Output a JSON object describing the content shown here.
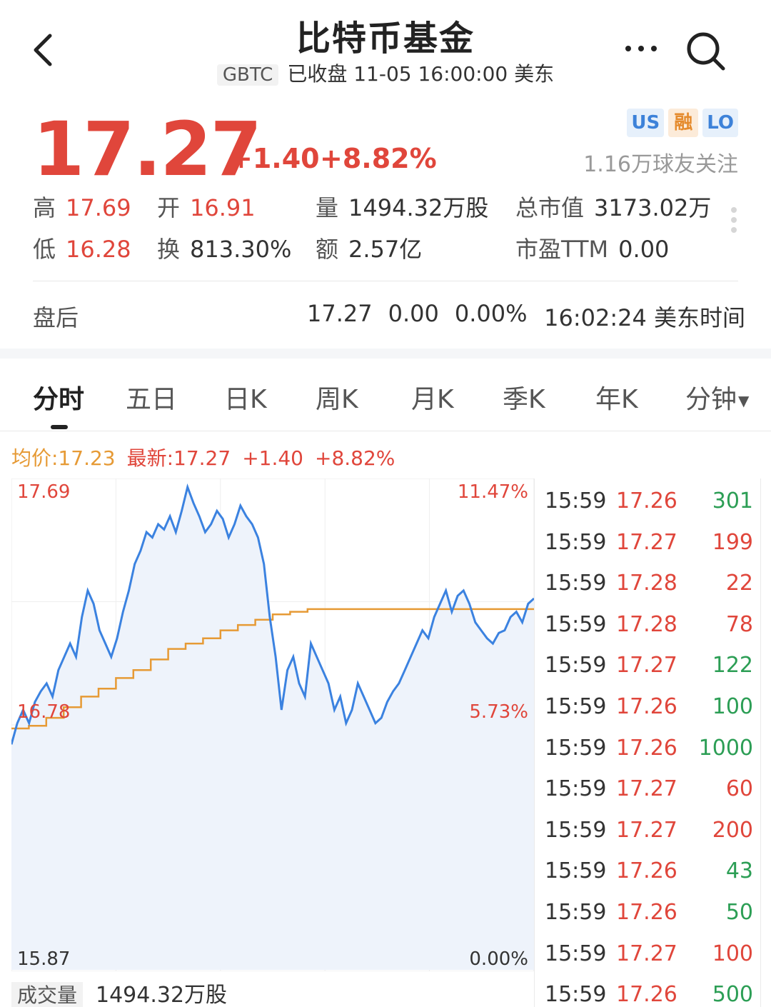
{
  "header": {
    "title": "比特币基金",
    "ticker": "GBTC",
    "status": "已收盘 11-05 16:00:00 美东"
  },
  "quote": {
    "price": "17.27",
    "change": "+1.40",
    "change_pct": "+8.82%",
    "badges": [
      "US",
      "融",
      "LO"
    ],
    "followers": "1.16万球友关注",
    "stats": {
      "high_label": "高",
      "high": "17.69",
      "open_label": "开",
      "open": "16.91",
      "volume_label": "量",
      "volume": "1494.32万股",
      "mktcap_label": "总市值",
      "mktcap": "3173.02万",
      "low_label": "低",
      "low": "16.28",
      "turnover_label": "换",
      "turnover": "813.30%",
      "amount_label": "额",
      "amount": "2.57亿",
      "pe_label": "市盈TTM",
      "pe": "0.00"
    },
    "after_hours": {
      "label": "盘后",
      "price": "17.27",
      "change": "0.00",
      "pct": "0.00%",
      "time": "16:02:24 美东时间"
    }
  },
  "tabs": [
    "分时",
    "五日",
    "日K",
    "周K",
    "月K",
    "季K",
    "年K",
    "分钟"
  ],
  "active_tab": "分时",
  "legend": {
    "avg": "均价:17.23",
    "latest": "最新:17.27",
    "change": "+1.40",
    "pct": "+8.82%"
  },
  "chart_labels": {
    "y_top": "17.69",
    "y_mid": "16.78",
    "y_bottom": "15.87",
    "pct_top": "11.47%",
    "pct_mid": "5.73%",
    "pct_bottom": "0.00%"
  },
  "volume": {
    "label": "成交量",
    "value": "1494.32万股"
  },
  "trades": [
    {
      "time": "15:59",
      "price": "17.26",
      "vol": "301",
      "side": "buy"
    },
    {
      "time": "15:59",
      "price": "17.27",
      "vol": "199",
      "side": "sell"
    },
    {
      "time": "15:59",
      "price": "17.28",
      "vol": "22",
      "side": "sell"
    },
    {
      "time": "15:59",
      "price": "17.28",
      "vol": "78",
      "side": "sell"
    },
    {
      "time": "15:59",
      "price": "17.27",
      "vol": "122",
      "side": "buy"
    },
    {
      "time": "15:59",
      "price": "17.26",
      "vol": "100",
      "side": "buy"
    },
    {
      "time": "15:59",
      "price": "17.26",
      "vol": "1000",
      "side": "buy"
    },
    {
      "time": "15:59",
      "price": "17.27",
      "vol": "60",
      "side": "sell"
    },
    {
      "time": "15:59",
      "price": "17.27",
      "vol": "200",
      "side": "sell"
    },
    {
      "time": "15:59",
      "price": "17.26",
      "vol": "43",
      "side": "buy"
    },
    {
      "time": "15:59",
      "price": "17.26",
      "vol": "50",
      "side": "buy"
    },
    {
      "time": "15:59",
      "price": "17.27",
      "vol": "100",
      "side": "sell"
    },
    {
      "time": "15:59",
      "price": "17.26",
      "vol": "500",
      "side": "buy"
    }
  ],
  "colors": {
    "up": "#e0463b",
    "down": "#2c9e55",
    "price_line": "#3b82e0",
    "avg_line": "#e69a35",
    "fill": "#eef3fb"
  },
  "chart_data": {
    "type": "line",
    "ylim": [
      15.87,
      17.69
    ],
    "y2lim": [
      "0.00%",
      "11.47%"
    ],
    "series": [],
    "price_values": [
      16.72,
      16.8,
      16.85,
      16.8,
      16.88,
      16.92,
      16.95,
      16.9,
      17.0,
      17.05,
      17.1,
      17.05,
      17.2,
      17.3,
      17.25,
      17.15,
      17.1,
      17.05,
      17.12,
      17.22,
      17.3,
      17.4,
      17.45,
      17.52,
      17.5,
      17.55,
      17.53,
      17.58,
      17.52,
      17.6,
      17.69,
      17.63,
      17.58,
      17.52,
      17.55,
      17.6,
      17.57,
      17.5,
      17.55,
      17.62,
      17.58,
      17.55,
      17.5,
      17.4,
      17.2,
      17.05,
      16.85,
      17.0,
      17.05,
      16.95,
      16.9,
      17.1,
      17.05,
      17.0,
      16.95,
      16.85,
      16.9,
      16.8,
      16.85,
      16.95,
      16.9,
      16.85,
      16.8,
      16.82,
      16.88,
      16.92,
      16.95,
      17.0,
      17.05,
      17.1,
      17.15,
      17.12,
      17.2,
      17.25,
      17.3,
      17.22,
      17.28,
      17.3,
      17.25,
      17.18,
      17.15,
      17.12,
      17.1,
      17.14,
      17.15,
      17.2,
      17.22,
      17.18,
      17.25,
      17.27
    ],
    "avg_values": [
      16.78,
      16.79,
      16.82,
      16.86,
      16.9,
      16.93,
      16.97,
      17.0,
      17.04,
      17.08,
      17.1,
      17.12,
      17.15,
      17.17,
      17.19,
      17.21,
      17.22,
      17.23,
      17.23,
      17.23,
      17.23,
      17.23,
      17.23,
      17.23,
      17.23,
      17.23,
      17.23,
      17.23,
      17.23,
      17.23
    ]
  }
}
